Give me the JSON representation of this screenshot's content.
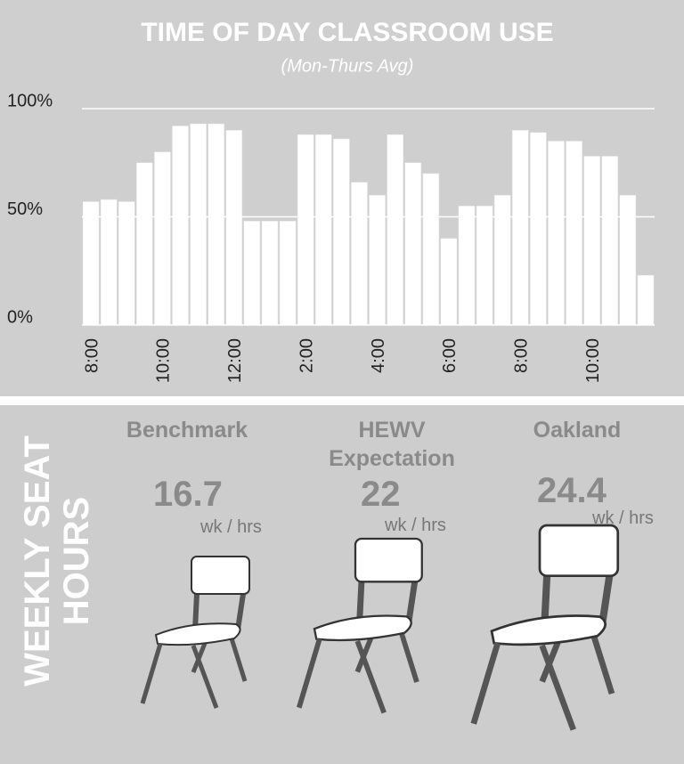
{
  "chart_data": {
    "type": "bar",
    "title": "TIME OF DAY CLASSROOM USE",
    "subtitle": "(Mon-Thurs Avg)",
    "categories": [
      "8:00",
      null,
      null,
      null,
      "10:00",
      null,
      null,
      null,
      "12:00",
      null,
      null,
      null,
      "2:00",
      null,
      null,
      null,
      "4:00",
      null,
      null,
      null,
      "6:00",
      null,
      null,
      null,
      "8:00",
      null,
      null,
      null,
      "10:00",
      null,
      null,
      null
    ],
    "values": [
      57,
      58,
      57,
      75,
      80,
      92,
      93,
      93,
      90,
      48,
      48,
      48,
      88,
      88,
      86,
      66,
      60,
      88,
      75,
      70,
      40,
      55,
      55,
      60,
      90,
      89,
      85,
      85,
      78,
      78,
      60,
      23
    ],
    "color": "#ffffff",
    "ylim": [
      0,
      100
    ],
    "yticks": [
      {
        "value": 0,
        "label": "0%"
      },
      {
        "value": 50,
        "label": "50%"
      },
      {
        "value": 100,
        "label": "100%"
      }
    ],
    "grid": true
  },
  "panel": {
    "title": "WEEKLY SEAT HOURS",
    "items": [
      {
        "name": "Benchmark",
        "value": "16.7",
        "unit": "wk / hrs"
      },
      {
        "name": "HEWV Expectation",
        "value": "22",
        "unit": "wk / hrs"
      },
      {
        "name": "Oakland",
        "value": "24.4",
        "unit": "wk / hrs"
      }
    ]
  }
}
